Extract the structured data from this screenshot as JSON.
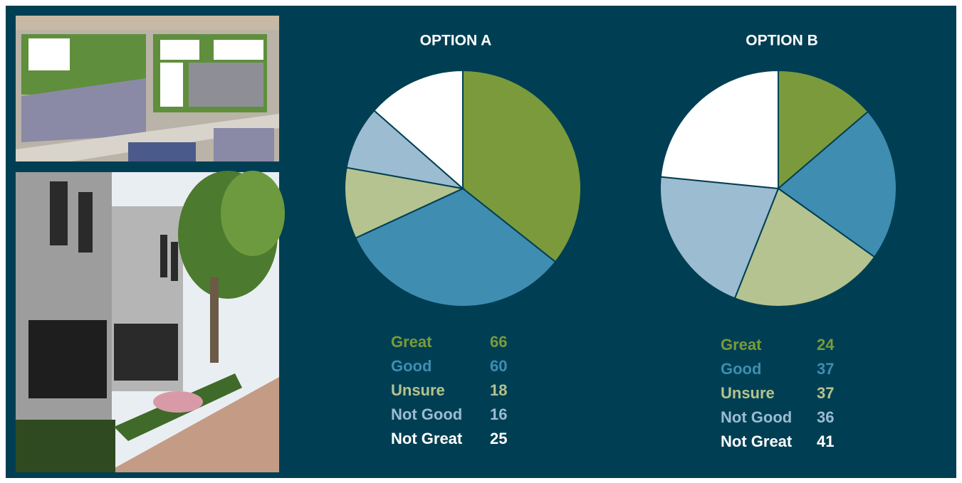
{
  "chart_data": [
    {
      "type": "pie",
      "title": "OPTION A",
      "categories": [
        "Great",
        "Good",
        "Unsure",
        "Not Good",
        "Not Great"
      ],
      "values": [
        66,
        60,
        18,
        16,
        25
      ],
      "colors": [
        "#7a9a3c",
        "#3f8db1",
        "#b4c38f",
        "#9cbcd2",
        "#ffffff"
      ]
    },
    {
      "type": "pie",
      "title": "OPTION B",
      "categories": [
        "Great",
        "Good",
        "Unsure",
        "Not Good",
        "Not Great"
      ],
      "values": [
        24,
        37,
        37,
        36,
        41
      ],
      "colors": [
        "#7a9a3c",
        "#3f8db1",
        "#b4c38f",
        "#9cbcd2",
        "#ffffff"
      ]
    }
  ]
}
